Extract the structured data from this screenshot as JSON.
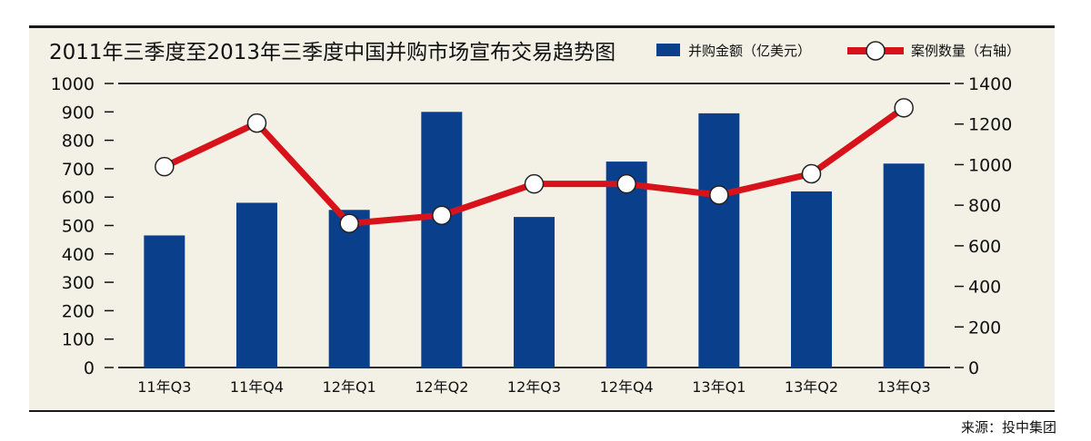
{
  "chart_data": {
    "type": "bar",
    "title": "2011年三季度至2013年三季度中国并购市场宣布交易趋势图",
    "categories": [
      "11年Q3",
      "11年Q4",
      "12年Q1",
      "12年Q2",
      "12年Q3",
      "12年Q4",
      "13年Q1",
      "13年Q2",
      "13年Q3"
    ],
    "series": [
      {
        "name": "并购金额（亿美元）",
        "type": "bar",
        "axis": "left",
        "color": "#0a3f8c",
        "values": [
          465,
          580,
          555,
          900,
          530,
          725,
          895,
          620,
          718
        ]
      },
      {
        "name": "案例数量（右轴）",
        "type": "line",
        "axis": "right",
        "color": "#d8121b",
        "values": [
          990,
          1205,
          710,
          750,
          905,
          905,
          850,
          955,
          1280
        ]
      }
    ],
    "ylim_left": [
      0,
      1000
    ],
    "ylim_right": [
      0,
      1400
    ],
    "yticks_left": [
      "0",
      "100",
      "200",
      "300",
      "400",
      "500",
      "600",
      "700",
      "800",
      "900",
      "1000"
    ],
    "yticks_right": [
      "0",
      "200",
      "400",
      "600",
      "800",
      "1000",
      "1200",
      "1400"
    ],
    "legend_position": "top-right",
    "grid": false,
    "source": "来源：投中集团"
  }
}
